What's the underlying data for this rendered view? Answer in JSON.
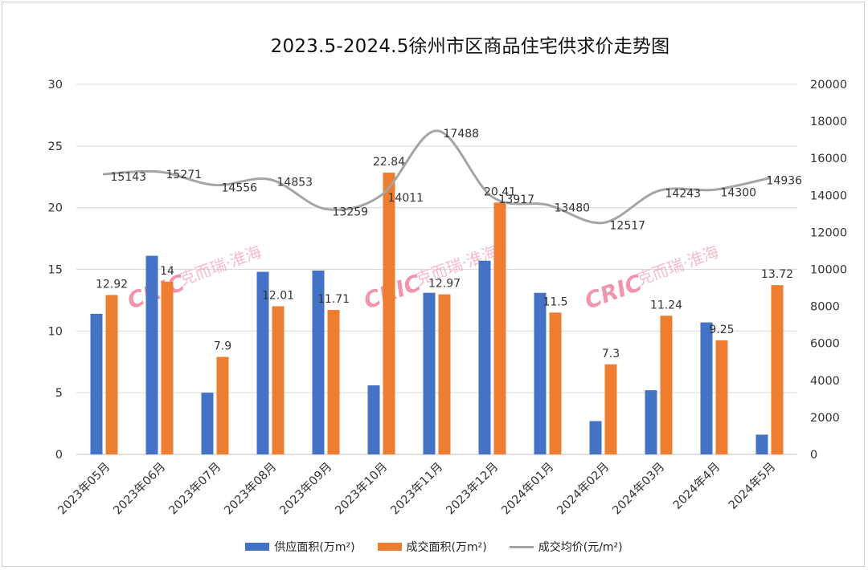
{
  "title": "2023.5-2024.5徐州市区商品住宅供求价走势图",
  "watermark": {
    "logo": "CRIC",
    "text": "克而瑞·淮海"
  },
  "colors": {
    "supply": "#4472C4",
    "sales": "#ED7D31",
    "price": "#A5A5A5"
  },
  "chart_data": {
    "type": "bar",
    "categories": [
      "2023年05月",
      "2023年06月",
      "2023年07月",
      "2023年08月",
      "2023年09月",
      "2023年10月",
      "2023年11月",
      "2023年12月",
      "2024年01月",
      "2024年02月",
      "2024年03月",
      "2024年4月",
      "2024年5月"
    ],
    "series": [
      {
        "name": "供应面积(万m²)",
        "type": "bar",
        "axis": "left",
        "values": [
          11.4,
          16.1,
          5.0,
          14.8,
          14.9,
          5.6,
          13.1,
          15.7,
          13.1,
          2.7,
          5.2,
          10.7,
          1.6
        ],
        "labels": [
          "",
          "",
          "",
          "",
          "",
          "",
          "",
          "",
          "",
          "",
          "",
          "",
          ""
        ]
      },
      {
        "name": "成交面积(万m²)",
        "type": "bar",
        "axis": "left",
        "values": [
          12.92,
          14,
          7.9,
          12.01,
          11.71,
          22.84,
          12.97,
          20.41,
          11.5,
          7.3,
          11.24,
          9.25,
          13.72
        ],
        "labels": [
          "12.92",
          "14",
          "7.9",
          "12.01",
          "11.71",
          "22.84",
          "12.97",
          "20.41",
          "11.5",
          "7.3",
          "11.24",
          "9.25",
          "13.72"
        ]
      },
      {
        "name": "成交均价(元/m²)",
        "type": "line",
        "axis": "right",
        "values": [
          15143,
          15271,
          14556,
          14853,
          13259,
          14011,
          17488,
          13917,
          13480,
          12517,
          14243,
          14300,
          14936
        ],
        "labels": [
          "15143",
          "15271",
          "14556",
          "14853",
          "13259",
          "14011",
          "17488",
          "13917",
          "13480",
          "12517",
          "14243",
          "14300",
          "14936"
        ]
      }
    ],
    "ylim_left": [
      0,
      30
    ],
    "yticks_left": [
      "0",
      "5",
      "10",
      "15",
      "20",
      "25",
      "30"
    ],
    "ylim_right": [
      0,
      20000
    ],
    "yticks_right": [
      "0",
      "2000",
      "4000",
      "6000",
      "8000",
      "10000",
      "12000",
      "14000",
      "16000",
      "18000",
      "20000"
    ],
    "grid": true,
    "legend_position": "bottom"
  }
}
